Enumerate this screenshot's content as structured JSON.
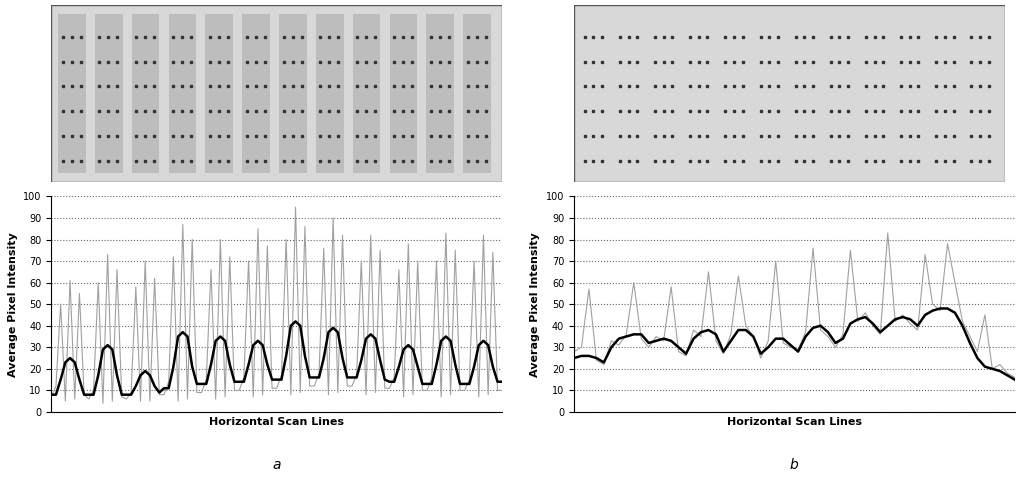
{
  "chart_data": [
    {
      "type": "line",
      "caption": "a",
      "x_label": "Horizontal Scan Lines",
      "y_label": "Average Pixel Intensity",
      "xlim": [
        0,
        96
      ],
      "ylim": [
        0,
        100
      ],
      "yticks": [
        0,
        10,
        20,
        30,
        40,
        50,
        60,
        70,
        80,
        90,
        100
      ],
      "grid": true,
      "tick_labels": "y",
      "series": [
        {
          "color": "#a0a0a0",
          "values": [
            7,
            12,
            50,
            5,
            61,
            6,
            55,
            8,
            6,
            10,
            60,
            4,
            73,
            5,
            66,
            7,
            6,
            9,
            58,
            5,
            70,
            5,
            62,
            8,
            8,
            14,
            72,
            5,
            87,
            6,
            80,
            9,
            9,
            15,
            66,
            6,
            80,
            7,
            72,
            10,
            10,
            16,
            70,
            7,
            85,
            8,
            77,
            11,
            11,
            17,
            80,
            8,
            95,
            9,
            86,
            12,
            12,
            18,
            76,
            8,
            90,
            9,
            82,
            12,
            12,
            17,
            70,
            8,
            82,
            9,
            75,
            11,
            11,
            16,
            66,
            7,
            78,
            8,
            70,
            10,
            10,
            16,
            70,
            7,
            83,
            8,
            75,
            10,
            10,
            15,
            70,
            7,
            82,
            8,
            74,
            10,
            10
          ]
        },
        {
          "color": "#000000",
          "values": [
            8,
            8,
            15,
            23,
            25,
            23,
            15,
            8,
            8,
            8,
            17,
            29,
            31,
            29,
            17,
            8,
            8,
            8,
            12,
            17,
            19,
            17,
            12,
            9,
            11,
            11,
            21,
            35,
            37,
            35,
            21,
            13,
            13,
            13,
            22,
            33,
            35,
            33,
            22,
            14,
            14,
            14,
            22,
            31,
            33,
            31,
            22,
            15,
            15,
            15,
            26,
            40,
            42,
            40,
            26,
            16,
            16,
            16,
            25,
            37,
            39,
            37,
            25,
            16,
            16,
            16,
            24,
            34,
            36,
            34,
            24,
            15,
            14,
            14,
            21,
            29,
            31,
            29,
            21,
            13,
            13,
            13,
            22,
            33,
            35,
            33,
            22,
            13,
            13,
            13,
            21,
            31,
            33,
            31,
            21,
            14,
            14
          ]
        }
      ]
    },
    {
      "type": "line",
      "caption": "b",
      "x_label": "Horizontal Scan Lines",
      "y_label": "Average Pixel Intensity",
      "xlim": [
        0,
        59
      ],
      "ylim": [
        0,
        100
      ],
      "yticks": [
        0,
        10,
        20,
        30,
        40,
        50,
        60,
        70,
        80,
        90,
        100
      ],
      "grid": true,
      "tick_labels": "y",
      "series": [
        {
          "color": "#a0a0a0",
          "values": [
            28,
            30,
            57,
            24,
            22,
            33,
            31,
            36,
            60,
            34,
            30,
            35,
            33,
            58,
            28,
            26,
            38,
            35,
            65,
            33,
            27,
            36,
            63,
            40,
            35,
            25,
            33,
            70,
            32,
            30,
            29,
            37,
            76,
            38,
            35,
            30,
            36,
            75,
            42,
            46,
            40,
            36,
            83,
            42,
            45,
            41,
            38,
            73,
            50,
            47,
            78,
            60,
            42,
            35,
            28,
            45,
            20,
            22,
            18,
            16
          ]
        },
        {
          "color": "#000000",
          "values": [
            25,
            26,
            26,
            25,
            23,
            30,
            34,
            35,
            36,
            36,
            32,
            33,
            34,
            33,
            30,
            27,
            34,
            37,
            38,
            36,
            28,
            33,
            38,
            38,
            35,
            27,
            30,
            34,
            34,
            31,
            28,
            35,
            39,
            40,
            37,
            32,
            34,
            41,
            43,
            44,
            41,
            37,
            40,
            43,
            44,
            43,
            40,
            45,
            47,
            48,
            48,
            46,
            40,
            32,
            25,
            21,
            20,
            19,
            17,
            15
          ]
        }
      ]
    }
  ]
}
